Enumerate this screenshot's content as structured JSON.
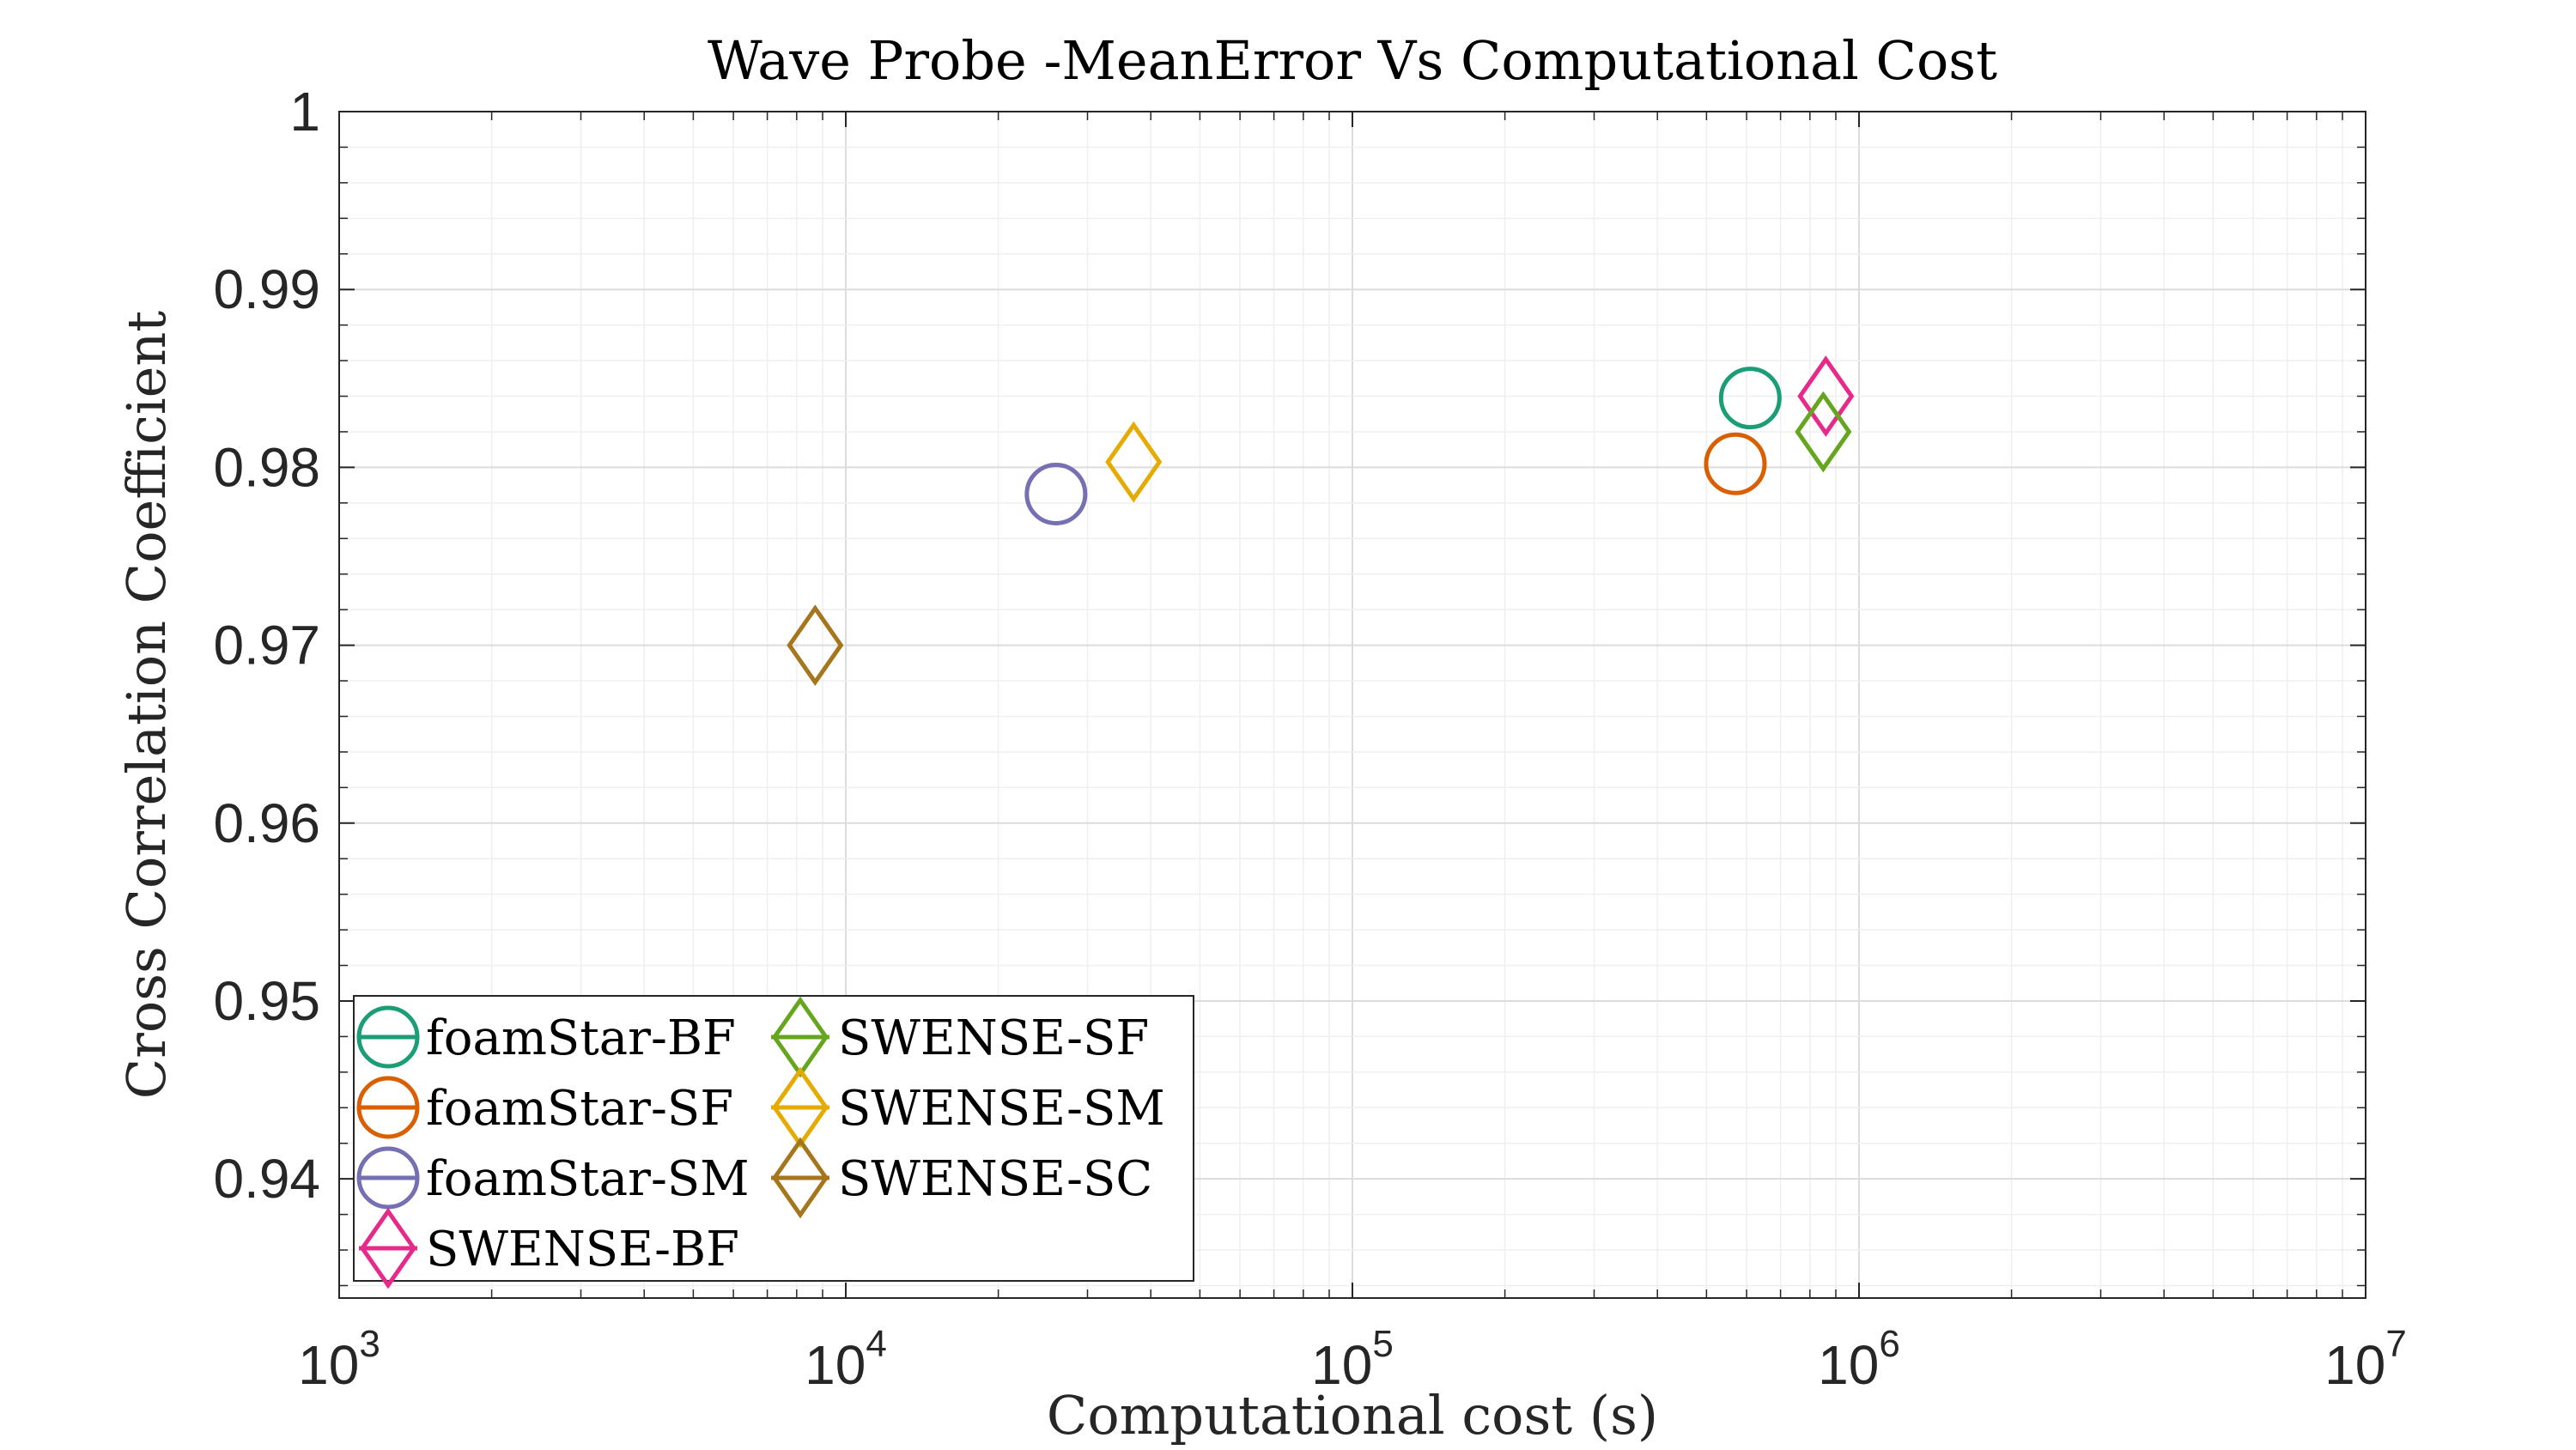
{
  "chart_data": {
    "type": "scatter",
    "title": "Wave Probe -MeanError Vs Computational Cost",
    "xlabel": "Computational cost (s)",
    "ylabel": "Cross Correlation Coefficient",
    "xscale": "log",
    "xlim": [
      1000,
      10000000
    ],
    "ylim": [
      0.9333,
      1.0
    ],
    "grid": "on (major and minor)",
    "legend_placement": "bottom-left, 2 columns",
    "x_ticks": [
      {
        "base": "10",
        "exp": "3"
      },
      {
        "base": "10",
        "exp": "4"
      },
      {
        "base": "10",
        "exp": "5"
      },
      {
        "base": "10",
        "exp": "6"
      },
      {
        "base": "10",
        "exp": "7"
      }
    ],
    "y_ticks": [
      "0.94",
      "0.95",
      "0.96",
      "0.97",
      "0.98",
      "0.99",
      "1"
    ],
    "series": [
      {
        "name": "foamStar-BF",
        "marker": "circle",
        "color": "#1b9e77",
        "x": 610000,
        "y": 0.9839
      },
      {
        "name": "foamStar-SF",
        "marker": "circle",
        "color": "#d95f02",
        "x": 570000,
        "y": 0.9802
      },
      {
        "name": "foamStar-SM",
        "marker": "circle",
        "color": "#7570b3",
        "x": 26000,
        "y": 0.9785
      },
      {
        "name": "SWENSE-BF",
        "marker": "diamond",
        "color": "#e7298a",
        "x": 860000,
        "y": 0.984
      },
      {
        "name": "SWENSE-SF",
        "marker": "diamond",
        "color": "#66a61e",
        "x": 850000,
        "y": 0.982
      },
      {
        "name": "SWENSE-SM",
        "marker": "diamond",
        "color": "#e6ab02",
        "x": 37000,
        "y": 0.9803
      },
      {
        "name": "SWENSE-SC",
        "marker": "diamond",
        "color": "#a6761d",
        "x": 8700,
        "y": 0.97
      }
    ]
  }
}
